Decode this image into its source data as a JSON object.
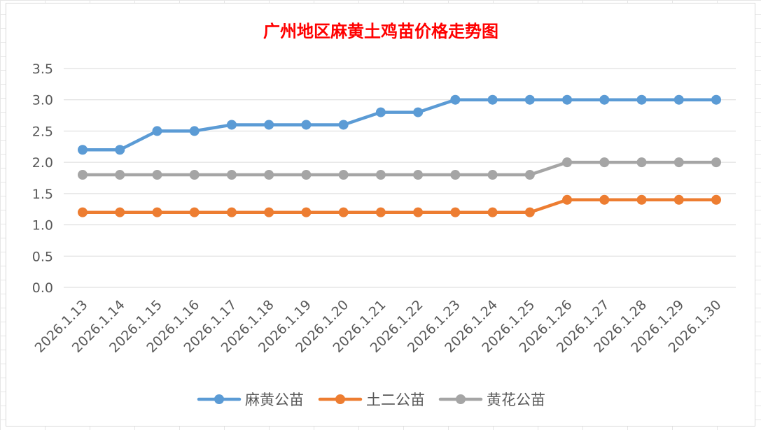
{
  "chart_data": {
    "type": "line",
    "title": "广州地区麻黄土鸡苗价格走势图",
    "xlabel": "",
    "ylabel": "",
    "categories": [
      "2026.1.13",
      "2026.1.14",
      "2026.1.15",
      "2026.1.16",
      "2026.1.17",
      "2026.1.18",
      "2026.1.19",
      "2026.1.20",
      "2026.1.21",
      "2026.1.22",
      "2026.1.23",
      "2026.1.24",
      "2026.1.25",
      "2026.1.26",
      "2026.1.27",
      "2026.1.28",
      "2026.1.29",
      "2026.1.30"
    ],
    "ylim": [
      0,
      3.5
    ],
    "yticks": [
      "0.0",
      "0.5",
      "1.0",
      "1.5",
      "2.0",
      "2.5",
      "3.0",
      "3.5"
    ],
    "grid": true,
    "legend_position": "bottom",
    "series": [
      {
        "name": "麻黄公苗",
        "color": "#5b9bd5",
        "values": [
          2.2,
          2.2,
          2.5,
          2.5,
          2.6,
          2.6,
          2.6,
          2.6,
          2.8,
          2.8,
          3.0,
          3.0,
          3.0,
          3.0,
          3.0,
          3.0,
          3.0,
          3.0
        ]
      },
      {
        "name": "土二公苗",
        "color": "#ed7d31",
        "values": [
          1.2,
          1.2,
          1.2,
          1.2,
          1.2,
          1.2,
          1.2,
          1.2,
          1.2,
          1.2,
          1.2,
          1.2,
          1.2,
          1.4,
          1.4,
          1.4,
          1.4,
          1.4
        ]
      },
      {
        "name": "黄花公苗",
        "color": "#a5a5a5",
        "values": [
          1.8,
          1.8,
          1.8,
          1.8,
          1.8,
          1.8,
          1.8,
          1.8,
          1.8,
          1.8,
          1.8,
          1.8,
          1.8,
          2.0,
          2.0,
          2.0,
          2.0,
          2.0
        ]
      }
    ]
  }
}
